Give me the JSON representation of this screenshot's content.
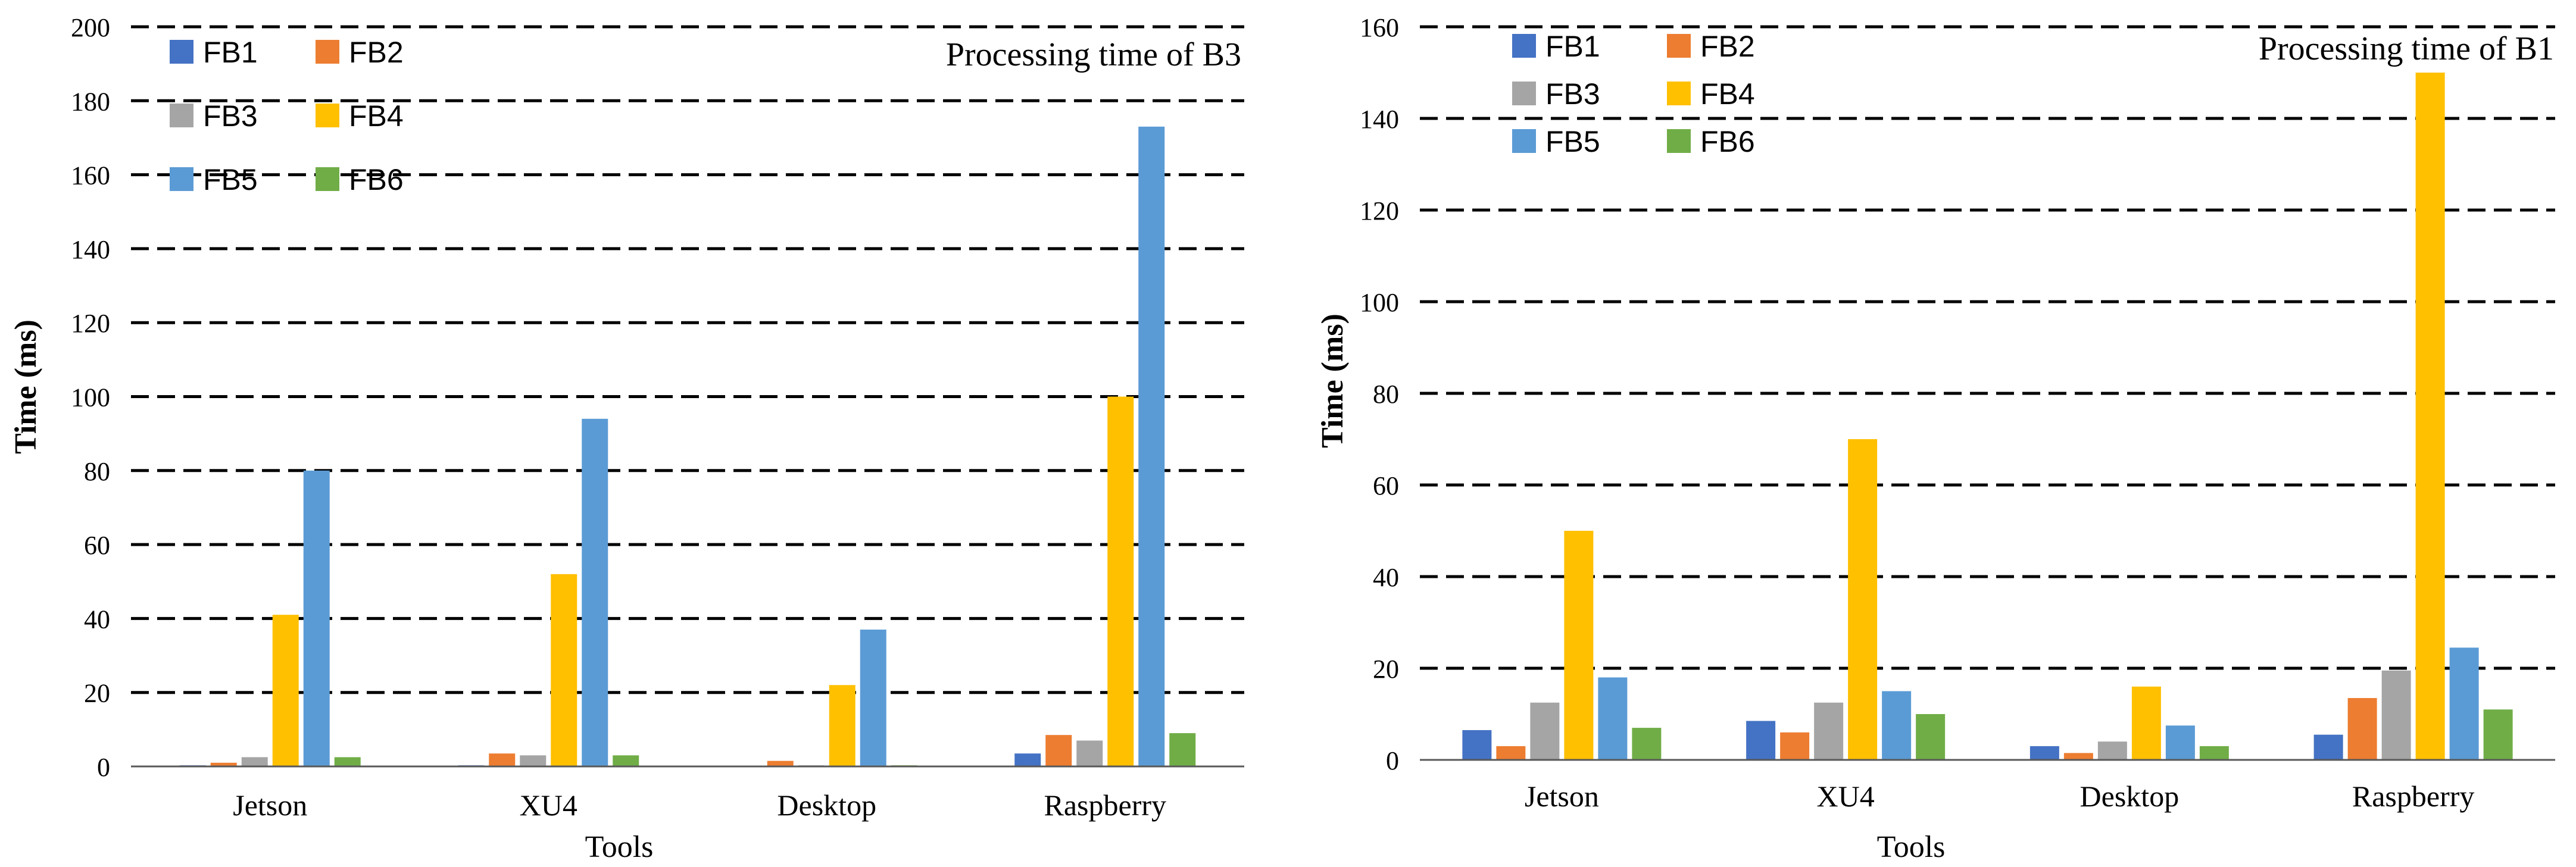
{
  "colors": {
    "FB1": "#4472C4",
    "FB2": "#ED7D31",
    "FB3": "#A5A5A5",
    "FB4": "#FFC000",
    "FB5": "#5B9BD5",
    "FB6": "#70AD47",
    "gridline": "#000000",
    "axis": "#595959"
  },
  "chart_data": [
    {
      "type": "bar",
      "title": "Processing time of B3",
      "xlabel": "Tools",
      "ylabel": "Time (ms)",
      "ylim": [
        0,
        200
      ],
      "yticks": [
        "0",
        "20",
        "40",
        "60",
        "80",
        "100",
        "120",
        "140",
        "160",
        "180",
        "200"
      ],
      "categories": [
        "Jetson",
        "XU4",
        "Desktop",
        "Raspberry"
      ],
      "legend": [
        "FB1",
        "FB2",
        "FB3",
        "FB4",
        "FB5",
        "FB6"
      ],
      "series": [
        {
          "name": "FB1",
          "values": [
            0.3,
            0.3,
            0.2,
            3.5
          ]
        },
        {
          "name": "FB2",
          "values": [
            1.0,
            3.5,
            1.5,
            8.5
          ]
        },
        {
          "name": "FB3",
          "values": [
            2.5,
            3.0,
            0.3,
            7.0
          ]
        },
        {
          "name": "FB4",
          "values": [
            41,
            52,
            22,
            100
          ]
        },
        {
          "name": "FB5",
          "values": [
            80,
            94,
            37,
            173
          ]
        },
        {
          "name": "FB6",
          "values": [
            2.5,
            3.0,
            0.3,
            9.0
          ]
        }
      ]
    },
    {
      "type": "bar",
      "title": "Processing time of B1",
      "xlabel": "Tools",
      "ylabel": "Time (ms)",
      "ylim": [
        0,
        160
      ],
      "yticks": [
        "0",
        "20",
        "40",
        "60",
        "80",
        "100",
        "120",
        "140",
        "160"
      ],
      "categories": [
        "Jetson",
        "XU4",
        "Desktop",
        "Raspberry"
      ],
      "legend": [
        "FB1",
        "FB2",
        "FB3",
        "FB4",
        "FB5",
        "FB6"
      ],
      "series": [
        {
          "name": "FB1",
          "values": [
            6.5,
            8.5,
            3.0,
            5.5
          ]
        },
        {
          "name": "FB2",
          "values": [
            3.0,
            6.0,
            1.5,
            13.5
          ]
        },
        {
          "name": "FB3",
          "values": [
            12.5,
            12.5,
            4.0,
            19.5
          ]
        },
        {
          "name": "FB4",
          "values": [
            50,
            70,
            16,
            150
          ]
        },
        {
          "name": "FB5",
          "values": [
            18,
            15,
            7.5,
            24.5
          ]
        },
        {
          "name": "FB6",
          "values": [
            7,
            10,
            3,
            11
          ]
        }
      ]
    }
  ]
}
